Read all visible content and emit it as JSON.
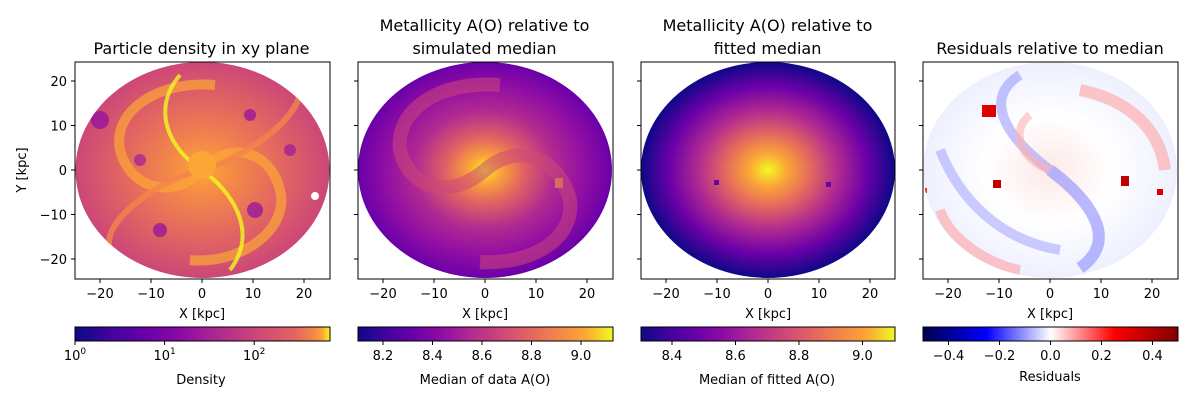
{
  "chart_data": [
    {
      "type": "heatmap",
      "title": "Particle density in xy plane",
      "xlabel": "X [kpc]",
      "ylabel": "Y [kpc]",
      "xlim": [
        -25,
        25
      ],
      "ylim": [
        -25,
        25
      ],
      "xticks": [
        "−20",
        "−10",
        "0",
        "10",
        "20"
      ],
      "yticks": [
        "20",
        "10",
        "0",
        "−10",
        "−20"
      ],
      "colormap": "plasma",
      "colorbar": {
        "label": "Density",
        "scale": "log",
        "range": [
          1,
          600
        ],
        "ticks": [
          {
            "base": "10",
            "exp": "0"
          },
          {
            "base": "10",
            "exp": "1"
          },
          {
            "base": "10",
            "exp": "2"
          }
        ]
      }
    },
    {
      "type": "heatmap",
      "title_lines": [
        "Metallicity A(O) relative to",
        "simulated median"
      ],
      "xlabel": "X [kpc]",
      "xlim": [
        -25,
        25
      ],
      "ylim": [
        -25,
        25
      ],
      "xticks": [
        "−20",
        "−10",
        "0",
        "10",
        "20"
      ],
      "colormap": "plasma",
      "colorbar": {
        "label": "Median of data A(O)",
        "range": [
          8.1,
          9.13
        ],
        "ticks": [
          "8.2",
          "8.4",
          "8.6",
          "8.8",
          "9.0"
        ]
      }
    },
    {
      "type": "heatmap",
      "title_lines": [
        "Metallicity A(O) relative to",
        "fitted median"
      ],
      "xlabel": "X [kpc]",
      "xlim": [
        -25,
        25
      ],
      "ylim": [
        -25,
        25
      ],
      "xticks": [
        "−20",
        "−10",
        "0",
        "10",
        "20"
      ],
      "colormap": "plasma",
      "colorbar": {
        "label": "Median of fitted A(O)",
        "range": [
          8.3,
          9.1
        ],
        "ticks": [
          "8.4",
          "8.6",
          "8.8",
          "9.0"
        ]
      }
    },
    {
      "type": "heatmap",
      "title": "Residuals relative to median",
      "xlabel": "X [kpc]",
      "xlim": [
        -25,
        25
      ],
      "ylim": [
        -25,
        25
      ],
      "xticks": [
        "−20",
        "−10",
        "0",
        "10",
        "20"
      ],
      "colormap": "seismic",
      "colorbar": {
        "label": "Residuals",
        "range": [
          -0.5,
          0.5
        ],
        "ticks": [
          "−0.4",
          "−0.2",
          "0.0",
          "0.2",
          "0.4"
        ]
      }
    }
  ]
}
